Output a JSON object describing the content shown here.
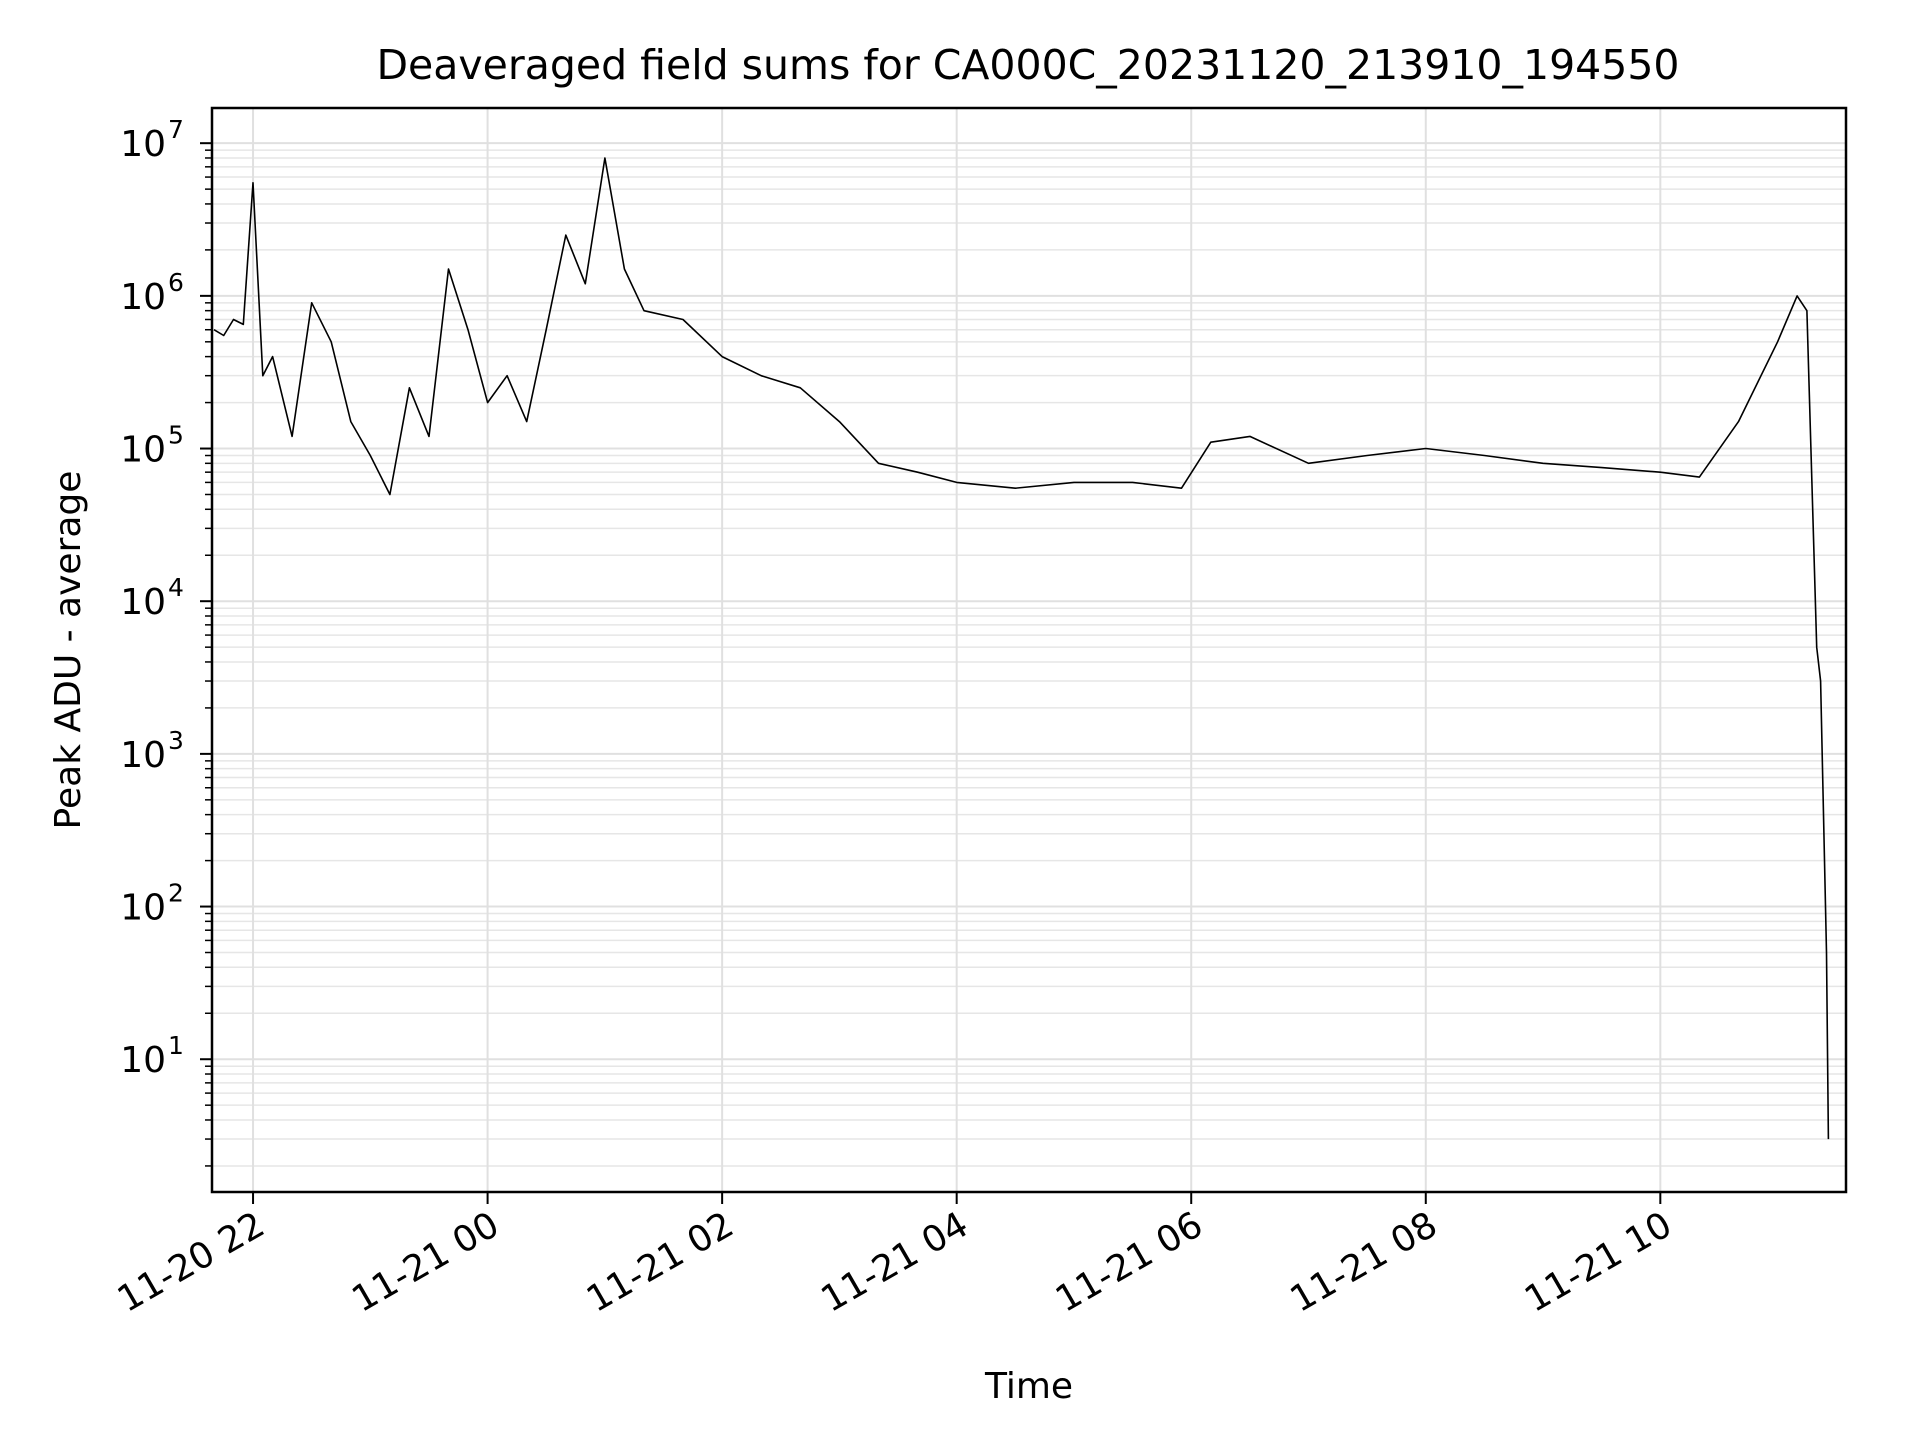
{
  "chart_data": {
    "type": "line",
    "title": "Deaveraged field sums for CA000C_20231120_213910_194550",
    "xlabel": "Time",
    "ylabel": "Peak ADU - average",
    "yscale": "log",
    "ylim": [
      1.35,
      17000000
    ],
    "xlim": [
      "2023-11-20 21:39",
      "2023-11-21 11:35"
    ],
    "grid": true,
    "line_color": "#000000",
    "x_ticks": [
      {
        "t": "2023-11-20 22:00",
        "label": "11-20 22"
      },
      {
        "t": "2023-11-21 00:00",
        "label": "11-21 00"
      },
      {
        "t": "2023-11-21 02:00",
        "label": "11-21 02"
      },
      {
        "t": "2023-11-21 04:00",
        "label": "11-21 04"
      },
      {
        "t": "2023-11-21 06:00",
        "label": "11-21 06"
      },
      {
        "t": "2023-11-21 08:00",
        "label": "11-21 08"
      },
      {
        "t": "2023-11-21 10:00",
        "label": "11-21 10"
      }
    ],
    "y_ticks": [
      {
        "v": 10,
        "base": "10",
        "exp": "1"
      },
      {
        "v": 100,
        "base": "10",
        "exp": "2"
      },
      {
        "v": 1000,
        "base": "10",
        "exp": "3"
      },
      {
        "v": 10000,
        "base": "10",
        "exp": "4"
      },
      {
        "v": 100000,
        "base": "10",
        "exp": "5"
      },
      {
        "v": 1000000,
        "base": "10",
        "exp": "6"
      },
      {
        "v": 10000000,
        "base": "10",
        "exp": "7"
      }
    ],
    "series": [
      {
        "points": [
          [
            "2023-11-20 21:40",
            600000
          ],
          [
            "2023-11-20 21:45",
            550000
          ],
          [
            "2023-11-20 21:50",
            700000
          ],
          [
            "2023-11-20 21:55",
            650000
          ],
          [
            "2023-11-20 22:00",
            5500000
          ],
          [
            "2023-11-20 22:05",
            300000
          ],
          [
            "2023-11-20 22:10",
            400000
          ],
          [
            "2023-11-20 22:20",
            120000
          ],
          [
            "2023-11-20 22:30",
            900000
          ],
          [
            "2023-11-20 22:40",
            500000
          ],
          [
            "2023-11-20 22:50",
            150000
          ],
          [
            "2023-11-20 23:00",
            90000
          ],
          [
            "2023-11-20 23:10",
            50000
          ],
          [
            "2023-11-20 23:20",
            250000
          ],
          [
            "2023-11-20 23:30",
            120000
          ],
          [
            "2023-11-20 23:40",
            1500000
          ],
          [
            "2023-11-20 23:50",
            600000
          ],
          [
            "2023-11-21 00:00",
            200000
          ],
          [
            "2023-11-21 00:10",
            300000
          ],
          [
            "2023-11-21 00:20",
            150000
          ],
          [
            "2023-11-21 00:30",
            600000
          ],
          [
            "2023-11-21 00:40",
            2500000
          ],
          [
            "2023-11-21 00:50",
            1200000
          ],
          [
            "2023-11-21 01:00",
            8000000
          ],
          [
            "2023-11-21 01:10",
            1500000
          ],
          [
            "2023-11-21 01:20",
            800000
          ],
          [
            "2023-11-21 01:40",
            700000
          ],
          [
            "2023-11-21 02:00",
            400000
          ],
          [
            "2023-11-21 02:20",
            300000
          ],
          [
            "2023-11-21 02:40",
            250000
          ],
          [
            "2023-11-21 03:00",
            150000
          ],
          [
            "2023-11-21 03:20",
            80000
          ],
          [
            "2023-11-21 03:40",
            70000
          ],
          [
            "2023-11-21 04:00",
            60000
          ],
          [
            "2023-11-21 04:30",
            55000
          ],
          [
            "2023-11-21 05:00",
            60000
          ],
          [
            "2023-11-21 05:30",
            60000
          ],
          [
            "2023-11-21 05:55",
            55000
          ],
          [
            "2023-11-21 06:10",
            110000
          ],
          [
            "2023-11-21 06:30",
            120000
          ],
          [
            "2023-11-21 07:00",
            80000
          ],
          [
            "2023-11-21 07:30",
            90000
          ],
          [
            "2023-11-21 08:00",
            100000
          ],
          [
            "2023-11-21 08:30",
            90000
          ],
          [
            "2023-11-21 09:00",
            80000
          ],
          [
            "2023-11-21 09:30",
            75000
          ],
          [
            "2023-11-21 10:00",
            70000
          ],
          [
            "2023-11-21 10:20",
            65000
          ],
          [
            "2023-11-21 10:40",
            150000
          ],
          [
            "2023-11-21 11:00",
            500000
          ],
          [
            "2023-11-21 11:10",
            1000000
          ],
          [
            "2023-11-21 11:15",
            800000
          ],
          [
            "2023-11-21 11:20",
            5000
          ],
          [
            "2023-11-21 11:22",
            3000
          ],
          [
            "2023-11-21 11:25",
            50
          ],
          [
            "2023-11-21 11:26",
            3
          ]
        ]
      }
    ]
  }
}
